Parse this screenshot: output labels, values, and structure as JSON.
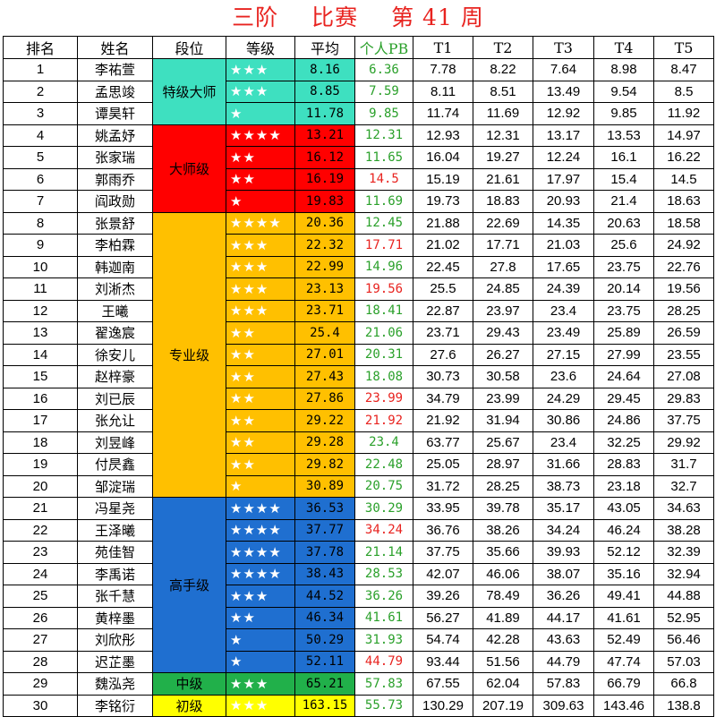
{
  "title": [
    "三阶",
    "比赛",
    "第 41 周"
  ],
  "headers": [
    "排名",
    "姓名",
    "段位",
    "等级",
    "平均",
    "个人PB",
    "T1",
    "T2",
    "T3",
    "T4",
    "T5"
  ],
  "colors": {
    "seg_special": "#3ee0c0",
    "seg_master": "#ff0000",
    "seg_pro": "#ffc000",
    "seg_expert": "#1f6fd0",
    "seg_mid": "#21b04a",
    "seg_begin": "#ffff00",
    "pb_green": "#2aa02a",
    "pb_red": "#e8231f"
  },
  "segments": [
    {
      "label": "特级大师",
      "rows": 3,
      "color": "#3ee0c0"
    },
    {
      "label": "大师级",
      "rows": 4,
      "color": "#ff0000"
    },
    {
      "label": "专业级",
      "rows": 13,
      "color": "#ffc000"
    },
    {
      "label": "高手级",
      "rows": 8,
      "color": "#1f6fd0"
    },
    {
      "label": "中级",
      "rows": 1,
      "color": "#21b04a"
    },
    {
      "label": "初级",
      "rows": 1,
      "color": "#ffff00"
    }
  ],
  "rows": [
    {
      "rank": "1",
      "name": "李祐萱",
      "stars": "★★★",
      "avg": "8.16",
      "pb": "6.36",
      "pb_color": "green",
      "t": [
        "7.78",
        "8.22",
        "7.64",
        "8.98",
        "8.47"
      ]
    },
    {
      "rank": "2",
      "name": "孟思竣",
      "stars": "★★★",
      "avg": "8.85",
      "pb": "7.59",
      "pb_color": "green",
      "t": [
        "8.11",
        "8.51",
        "13.49",
        "9.54",
        "8.5"
      ]
    },
    {
      "rank": "3",
      "name": "谭昊轩",
      "stars": "★",
      "avg": "11.78",
      "pb": "9.85",
      "pb_color": "green",
      "t": [
        "11.74",
        "11.69",
        "12.92",
        "9.85",
        "11.92"
      ]
    },
    {
      "rank": "4",
      "name": "姚孟妤",
      "stars": "★★★★",
      "avg": "13.21",
      "pb": "12.31",
      "pb_color": "green",
      "t": [
        "12.93",
        "12.31",
        "13.17",
        "13.53",
        "14.97"
      ]
    },
    {
      "rank": "5",
      "name": "张家瑞",
      "stars": "★★",
      "avg": "16.12",
      "pb": "11.65",
      "pb_color": "green",
      "t": [
        "16.04",
        "19.27",
        "12.24",
        "16.1",
        "16.22"
      ]
    },
    {
      "rank": "6",
      "name": "郭雨乔",
      "stars": "★★",
      "avg": "16.19",
      "pb": "14.5",
      "pb_color": "red",
      "t": [
        "15.19",
        "21.61",
        "17.97",
        "15.4",
        "14.5"
      ]
    },
    {
      "rank": "7",
      "name": "阎政勋",
      "stars": "★",
      "avg": "19.83",
      "pb": "11.69",
      "pb_color": "green",
      "t": [
        "19.73",
        "18.83",
        "20.93",
        "21.4",
        "18.63"
      ]
    },
    {
      "rank": "8",
      "name": "张景舒",
      "stars": "★★★★",
      "avg": "20.36",
      "pb": "12.45",
      "pb_color": "green",
      "t": [
        "21.88",
        "22.69",
        "14.35",
        "20.63",
        "18.58"
      ]
    },
    {
      "rank": "9",
      "name": "李柏霖",
      "stars": "★★★",
      "avg": "22.32",
      "pb": "17.71",
      "pb_color": "red",
      "t": [
        "21.02",
        "17.71",
        "21.03",
        "25.6",
        "24.92"
      ]
    },
    {
      "rank": "10",
      "name": "韩迦南",
      "stars": "★★★",
      "avg": "22.99",
      "pb": "14.96",
      "pb_color": "green",
      "t": [
        "22.45",
        "27.8",
        "17.65",
        "23.75",
        "22.76"
      ]
    },
    {
      "rank": "11",
      "name": "刘淅杰",
      "stars": "★★★",
      "avg": "23.13",
      "pb": "19.56",
      "pb_color": "red",
      "t": [
        "25.5",
        "24.85",
        "24.39",
        "20.14",
        "19.56"
      ]
    },
    {
      "rank": "12",
      "name": "王曦",
      "stars": "★★★",
      "avg": "23.71",
      "pb": "18.41",
      "pb_color": "green",
      "t": [
        "22.87",
        "23.97",
        "23.4",
        "23.75",
        "28.25"
      ]
    },
    {
      "rank": "13",
      "name": "翟逸宸",
      "stars": "★★",
      "avg": "25.4",
      "pb": "21.06",
      "pb_color": "green",
      "t": [
        "23.71",
        "29.43",
        "23.49",
        "25.89",
        "26.59"
      ]
    },
    {
      "rank": "14",
      "name": "徐安儿",
      "stars": "★★",
      "avg": "27.01",
      "pb": "20.31",
      "pb_color": "green",
      "t": [
        "27.6",
        "26.27",
        "27.15",
        "27.99",
        "23.55"
      ]
    },
    {
      "rank": "15",
      "name": "赵梓豪",
      "stars": "★★",
      "avg": "27.43",
      "pb": "18.08",
      "pb_color": "green",
      "t": [
        "30.73",
        "30.58",
        "23.6",
        "24.64",
        "27.08"
      ]
    },
    {
      "rank": "16",
      "name": "刘已辰",
      "stars": "★★",
      "avg": "27.86",
      "pb": "23.99",
      "pb_color": "red",
      "t": [
        "34.79",
        "23.99",
        "24.29",
        "29.45",
        "29.83"
      ]
    },
    {
      "rank": "17",
      "name": "张允让",
      "stars": "★★",
      "avg": "29.22",
      "pb": "21.92",
      "pb_color": "red",
      "t": [
        "21.92",
        "31.94",
        "30.86",
        "24.86",
        "37.75"
      ]
    },
    {
      "rank": "18",
      "name": "刘昱峰",
      "stars": "★★",
      "avg": "29.28",
      "pb": "23.4",
      "pb_color": "green",
      "t": [
        "63.77",
        "25.67",
        "23.4",
        "32.25",
        "29.92"
      ]
    },
    {
      "rank": "19",
      "name": "付昃鑫",
      "stars": "★★",
      "avg": "29.82",
      "pb": "22.48",
      "pb_color": "green",
      "t": [
        "25.05",
        "28.97",
        "31.66",
        "28.83",
        "31.7"
      ]
    },
    {
      "rank": "20",
      "name": "邹淀瑞",
      "stars": "★",
      "avg": "30.89",
      "pb": "20.75",
      "pb_color": "green",
      "t": [
        "31.72",
        "28.25",
        "38.73",
        "23.18",
        "32.7"
      ]
    },
    {
      "rank": "21",
      "name": "冯星尧",
      "stars": "★★★★",
      "avg": "36.53",
      "pb": "30.29",
      "pb_color": "green",
      "t": [
        "33.95",
        "39.78",
        "35.17",
        "43.05",
        "34.63"
      ]
    },
    {
      "rank": "22",
      "name": "王泽曦",
      "stars": "★★★★",
      "avg": "37.77",
      "pb": "34.24",
      "pb_color": "red",
      "t": [
        "36.76",
        "38.26",
        "34.24",
        "46.24",
        "38.28"
      ]
    },
    {
      "rank": "23",
      "name": "苑佳智",
      "stars": "★★★★",
      "avg": "37.78",
      "pb": "21.14",
      "pb_color": "green",
      "t": [
        "37.75",
        "35.66",
        "39.93",
        "52.12",
        "32.39"
      ]
    },
    {
      "rank": "24",
      "name": "李禹诺",
      "stars": "★★★★",
      "avg": "38.43",
      "pb": "28.53",
      "pb_color": "green",
      "t": [
        "42.07",
        "46.06",
        "38.07",
        "35.16",
        "32.94"
      ]
    },
    {
      "rank": "25",
      "name": "张千慧",
      "stars": "★★★",
      "avg": "44.52",
      "pb": "36.26",
      "pb_color": "green",
      "t": [
        "39.26",
        "78.49",
        "36.26",
        "49.41",
        "44.88"
      ]
    },
    {
      "rank": "26",
      "name": "黄梓墨",
      "stars": "★★",
      "avg": "46.34",
      "pb": "41.61",
      "pb_color": "green",
      "t": [
        "56.27",
        "41.89",
        "44.17",
        "41.61",
        "52.95"
      ]
    },
    {
      "rank": "27",
      "name": "刘欣彤",
      "stars": "★",
      "avg": "50.29",
      "pb": "31.93",
      "pb_color": "green",
      "t": [
        "54.74",
        "42.28",
        "43.63",
        "52.49",
        "56.46"
      ]
    },
    {
      "rank": "28",
      "name": "迟芷墨",
      "stars": "★",
      "avg": "52.11",
      "pb": "44.79",
      "pb_color": "red",
      "t": [
        "93.44",
        "51.56",
        "44.79",
        "47.74",
        "57.03"
      ]
    },
    {
      "rank": "29",
      "name": "魏泓尧",
      "stars": "★★★",
      "avg": "65.21",
      "pb": "57.83",
      "pb_color": "green",
      "t": [
        "67.55",
        "62.04",
        "57.83",
        "66.79",
        "66.8"
      ]
    },
    {
      "rank": "30",
      "name": "李铭衍",
      "stars": "★★★",
      "avg": "163.15",
      "pb": "55.73",
      "pb_color": "green",
      "t": [
        "130.29",
        "207.19",
        "309.63",
        "143.46",
        "138.8"
      ]
    }
  ]
}
